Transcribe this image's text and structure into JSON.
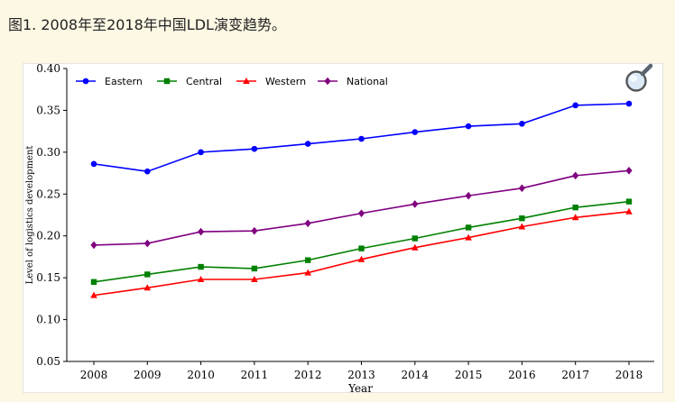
{
  "caption": "图1. 2008年至2018年中国LDL演变趋势。",
  "zoom_icon": "magnifier-icon",
  "chart_data": {
    "type": "line",
    "title": "",
    "xlabel": "Year",
    "ylabel": "Level of logistics development",
    "categories": [
      "2008",
      "2009",
      "2010",
      "2011",
      "2012",
      "2013",
      "2014",
      "2015",
      "2016",
      "2017",
      "2018"
    ],
    "ylim": [
      0.05,
      0.4
    ],
    "yticks": [
      "0.05",
      "0.10",
      "0.15",
      "0.20",
      "0.25",
      "0.30",
      "0.35",
      "0.40"
    ],
    "grid": false,
    "legend_position": "top-left",
    "series": [
      {
        "name": "Eastern",
        "color": "#0000ff",
        "marker": "circle",
        "values": [
          0.286,
          0.277,
          0.3,
          0.304,
          0.31,
          0.316,
          0.324,
          0.331,
          0.334,
          0.356,
          0.358
        ]
      },
      {
        "name": "Central",
        "color": "#008000",
        "marker": "square",
        "values": [
          0.145,
          0.154,
          0.163,
          0.161,
          0.171,
          0.185,
          0.197,
          0.21,
          0.221,
          0.234,
          0.241
        ]
      },
      {
        "name": "Western",
        "color": "#ff0000",
        "marker": "triangle",
        "values": [
          0.129,
          0.138,
          0.148,
          0.148,
          0.156,
          0.172,
          0.186,
          0.198,
          0.211,
          0.222,
          0.229
        ]
      },
      {
        "name": "National",
        "color": "#800080",
        "marker": "diamond",
        "values": [
          0.189,
          0.191,
          0.205,
          0.206,
          0.215,
          0.227,
          0.238,
          0.248,
          0.257,
          0.272,
          0.278
        ]
      }
    ]
  }
}
